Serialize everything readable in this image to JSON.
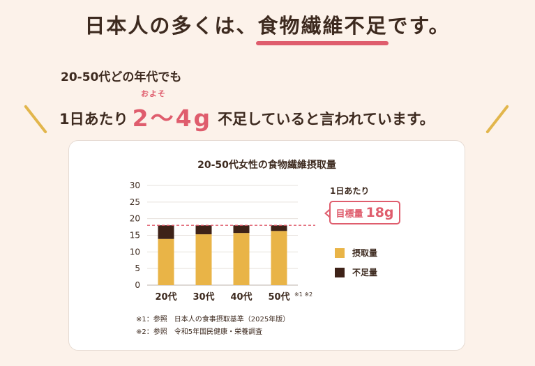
{
  "header": {
    "headline_pre": "日本人の多くは、",
    "headline_highlight": "食物繊維不足",
    "headline_post": "です。",
    "line1": "20-50代どの年代でも",
    "ruby": "およそ",
    "line2_pre": "1日あたり",
    "line2_big": "2〜4g",
    "line2_post": "不足していると言われています。"
  },
  "colors": {
    "intake": "#e9b447",
    "shortage": "#3e2218",
    "accent": "#df5d6d",
    "decor": "#e2b64c"
  },
  "target": {
    "per_day_label": "1日あたり",
    "label": "目標量",
    "value_text": "18g"
  },
  "legend": {
    "intake": "摂取量",
    "shortage": "不足量"
  },
  "notes_mark": "※1 ※2",
  "footnotes": [
    "※1：参照　日本人の食事摂取基準（2025年版）",
    "※2：参照　令和5年国民健康・栄養調査"
  ],
  "chart_data": {
    "type": "bar",
    "stacked": true,
    "title": "20-50代女性の食物繊維摂取量",
    "categories": [
      "20代",
      "30代",
      "40代",
      "50代"
    ],
    "series": [
      {
        "name": "摂取量",
        "values": [
          13.9,
          15.3,
          15.7,
          16.3
        ]
      },
      {
        "name": "不足量",
        "values": [
          4.1,
          2.7,
          2.3,
          1.7
        ]
      }
    ],
    "target_line": 18,
    "ylim": [
      0,
      30
    ],
    "yticks": [
      0,
      5,
      10,
      15,
      20,
      25,
      30
    ],
    "grid": true,
    "legend_position": "right"
  }
}
